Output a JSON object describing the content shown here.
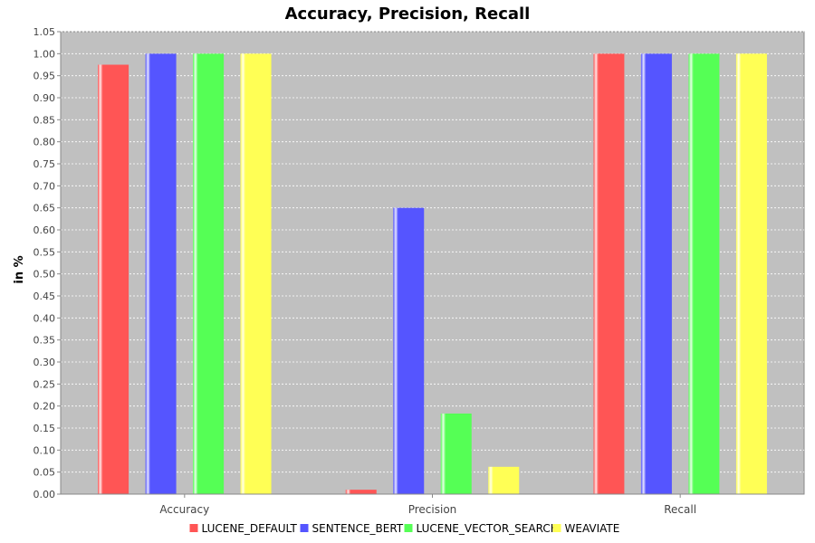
{
  "chart_data": {
    "type": "bar",
    "title": "Accuracy, Precision, Recall",
    "xlabel": "",
    "ylabel": "in %",
    "categories": [
      "Accuracy",
      "Precision",
      "Recall"
    ],
    "series": [
      {
        "name": "LUCENE_DEFAULT",
        "color": "#ff5555",
        "values": [
          0.975,
          0.01,
          1.0
        ]
      },
      {
        "name": "SENTENCE_BERT",
        "color": "#5555ff",
        "values": [
          1.0,
          0.65,
          1.0
        ]
      },
      {
        "name": "LUCENE_VECTOR_SEARCH",
        "color": "#55ff55",
        "values": [
          1.0,
          0.183,
          1.0
        ]
      },
      {
        "name": "WEAVIATE",
        "color": "#ffff55",
        "values": [
          1.0,
          0.062,
          1.0
        ]
      }
    ],
    "yticks": [
      "0.00",
      "0.05",
      "0.10",
      "0.15",
      "0.20",
      "0.25",
      "0.30",
      "0.35",
      "0.40",
      "0.45",
      "0.50",
      "0.55",
      "0.60",
      "0.65",
      "0.70",
      "0.75",
      "0.80",
      "0.85",
      "0.90",
      "0.95",
      "1.00",
      "1.05"
    ],
    "ylim": [
      0,
      1.05
    ],
    "grid": true,
    "legend": "bottom",
    "plot_background": "#c0c0c0"
  }
}
